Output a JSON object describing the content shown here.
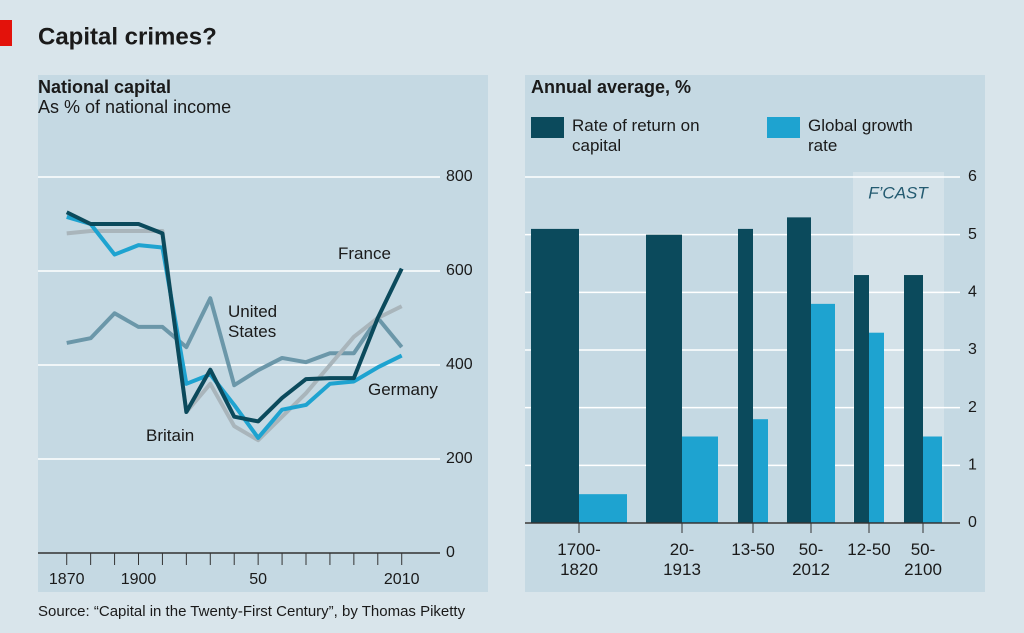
{
  "title": "Capital crimes?",
  "source": "Source: “Capital in the Twenty-First Century”, by Thomas Piketty",
  "chart_data": [
    {
      "type": "line",
      "title": "National capital",
      "subtitle": "As % of national income",
      "x": [
        1870,
        1880,
        1890,
        1900,
        1910,
        1920,
        1930,
        1940,
        1950,
        1960,
        1970,
        1980,
        1990,
        2000,
        2010
      ],
      "series": [
        {
          "name": "United States",
          "color": "#6b97a9",
          "values": [
            447,
            457,
            510,
            481,
            481,
            438,
            542,
            357,
            389,
            415,
            406,
            425,
            425,
            500,
            438
          ]
        },
        {
          "name": "Britain",
          "color": "#a9b5bb",
          "values": [
            680,
            685,
            685,
            685,
            685,
            300,
            360,
            270,
            240,
            290,
            340,
            400,
            460,
            500,
            525
          ]
        },
        {
          "name": "Germany",
          "color": "#1ea3d0",
          "values": [
            715,
            700,
            635,
            655,
            650,
            360,
            380,
            315,
            245,
            305,
            315,
            360,
            365,
            395,
            420
          ]
        },
        {
          "name": "France",
          "color": "#0b4a5c",
          "values": [
            725,
            700,
            700,
            700,
            680,
            300,
            390,
            290,
            280,
            330,
            370,
            372,
            372,
            500,
            605
          ]
        }
      ],
      "xlim": [
        1858,
        2026
      ],
      "xticks": [
        1870,
        1900,
        {
          "value": 1950,
          "label": "50"
        },
        2010
      ],
      "xticks_minor": [
        1870,
        1880,
        1890,
        1900,
        1910,
        1920,
        1930,
        1940,
        1950,
        1960,
        1970,
        1980,
        1990,
        2000,
        2010
      ],
      "ylim": [
        0,
        800
      ],
      "yticks": [
        0,
        200,
        400,
        600,
        800
      ],
      "grid": true
    },
    {
      "type": "bar",
      "title": "Annual average, %",
      "categories": [
        "1700-1820",
        "20-1913",
        "13-50",
        "50-2012",
        "12-50",
        "50-2100"
      ],
      "series": [
        {
          "name": "Rate of return on capital",
          "color": "#0b4a5c",
          "values": [
            5.1,
            5.0,
            5.1,
            5.3,
            4.3,
            4.3
          ]
        },
        {
          "name": "Global growth rate",
          "color": "#1ea3d0",
          "values": [
            0.5,
            1.5,
            1.8,
            3.8,
            3.3,
            1.5
          ]
        }
      ],
      "annotation": "F’CAST",
      "ylim": [
        0,
        6
      ],
      "yticks": [
        0,
        1,
        2,
        3,
        4,
        5,
        6
      ],
      "grid": true
    }
  ]
}
